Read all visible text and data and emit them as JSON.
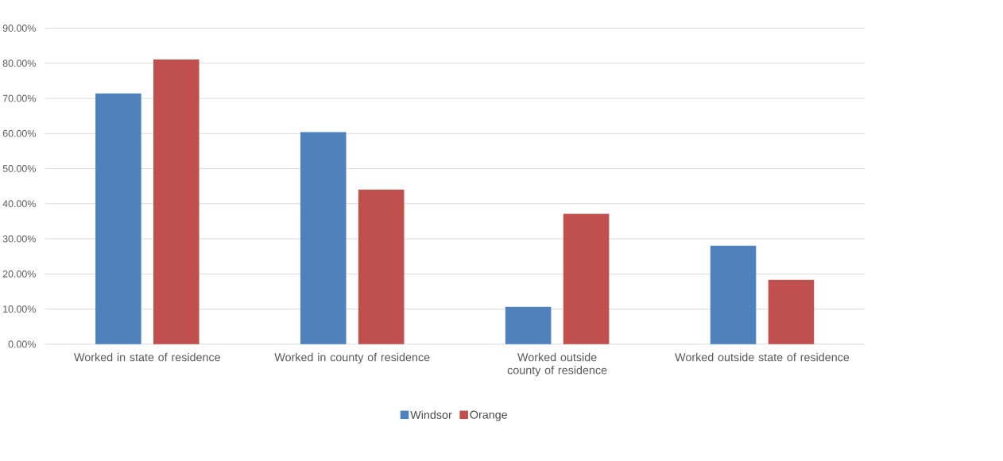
{
  "chart_data": {
    "type": "bar",
    "categories": [
      "Worked in state of residence",
      "Worked in county of residence",
      "Worked outside county of residence",
      "Worked outside state of residence"
    ],
    "series": [
      {
        "name": "Windsor",
        "color": "#4f81bd",
        "values": [
          71.4,
          60.4,
          10.6,
          28.0
        ]
      },
      {
        "name": "Orange",
        "color": "#c0504d",
        "values": [
          81.1,
          44.0,
          37.1,
          18.3
        ]
      }
    ],
    "ylim": [
      0,
      90
    ],
    "yticks": [
      {
        "value": 0,
        "label": "0.00%"
      },
      {
        "value": 10,
        "label": "10.00%"
      },
      {
        "value": 20,
        "label": "20.00%"
      },
      {
        "value": 30,
        "label": "30.00%"
      },
      {
        "value": 40,
        "label": "40.00%"
      },
      {
        "value": 50,
        "label": "50.00%"
      },
      {
        "value": 60,
        "label": "60.00%"
      },
      {
        "value": 70,
        "label": "70.00%"
      },
      {
        "value": 80,
        "label": "80.00%"
      },
      {
        "value": 90,
        "label": "90.00%"
      }
    ],
    "grid": "y",
    "legend": "bottom"
  }
}
